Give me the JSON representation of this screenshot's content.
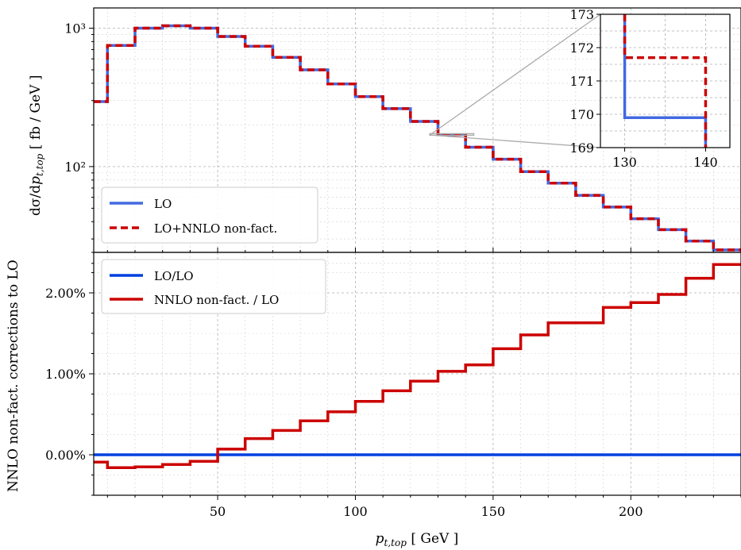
{
  "chart_data": [
    {
      "panel": "top",
      "type": "line",
      "style": "step",
      "yscale": "log",
      "ylabel": "dσ/dp_{t,top}  [ fb / GeV ]",
      "ylim": [
        24,
        1400
      ],
      "xlim": [
        5,
        240
      ],
      "ytick_labels": [
        "10³",
        "10²"
      ],
      "grid": true,
      "legend_position": "lower-left",
      "bin_edges": [
        5,
        10,
        20,
        30,
        40,
        50,
        60,
        70,
        80,
        90,
        100,
        110,
        120,
        130,
        140,
        150,
        160,
        170,
        180,
        190,
        200,
        210,
        220,
        230,
        240
      ],
      "series": [
        {
          "name": "LO",
          "color": "#4169e1",
          "linestyle": "solid",
          "values": [
            295,
            750,
            1000,
            1040,
            1000,
            870,
            740,
            615,
            500,
            395,
            320,
            262,
            212,
            170,
            138,
            113,
            92,
            76,
            62,
            51,
            42,
            35,
            29,
            25
          ]
        },
        {
          "name": "LO+NNLO non-fact.",
          "color": "#cc0000",
          "linestyle": "dashed",
          "values": [
            295,
            750,
            1000,
            1040,
            1000,
            870,
            740,
            615,
            500,
            395,
            320,
            262,
            212,
            170,
            138,
            113,
            92,
            76,
            62,
            51,
            42,
            35,
            29,
            25
          ]
        }
      ],
      "inset": {
        "xlim": [
          127,
          143
        ],
        "ylim": [
          169,
          173
        ],
        "xtick_labels": [
          "130",
          "140"
        ],
        "ytick_labels": [
          "173",
          "172",
          "171",
          "170",
          "169"
        ],
        "lo_level": 169.9,
        "nnlo_level": 171.7
      }
    },
    {
      "panel": "bottom",
      "type": "line",
      "style": "step",
      "ylabel": "NNLO non-fact. corrections to LO",
      "xlabel": "p_{t,top}  [ GeV ]",
      "ylim": [
        -0.5,
        2.5
      ],
      "xlim": [
        5,
        240
      ],
      "ytick_labels": [
        "0.00%",
        "1.00%",
        "2.00%"
      ],
      "xtick_labels": [
        "50",
        "100",
        "150",
        "200"
      ],
      "grid": true,
      "legend_position": "top-left",
      "bin_edges": [
        5,
        10,
        20,
        30,
        40,
        50,
        60,
        70,
        80,
        90,
        100,
        110,
        120,
        130,
        140,
        150,
        160,
        170,
        180,
        190,
        200,
        210,
        220,
        230,
        240
      ],
      "series": [
        {
          "name": "LO/LO",
          "color": "#0040e0",
          "values": [
            0,
            0,
            0,
            0,
            0,
            0,
            0,
            0,
            0,
            0,
            0,
            0,
            0,
            0,
            0,
            0,
            0,
            0,
            0,
            0,
            0,
            0,
            0,
            0
          ]
        },
        {
          "name": "NNLO non-fact. / LO",
          "color": "#cc0000",
          "values": [
            -0.09,
            -0.16,
            -0.15,
            -0.12,
            -0.08,
            0.07,
            0.2,
            0.3,
            0.42,
            0.53,
            0.66,
            0.79,
            0.91,
            1.03,
            1.11,
            1.31,
            1.48,
            1.63,
            1.63,
            1.82,
            1.88,
            1.98,
            2.18,
            2.35
          ]
        }
      ]
    }
  ]
}
